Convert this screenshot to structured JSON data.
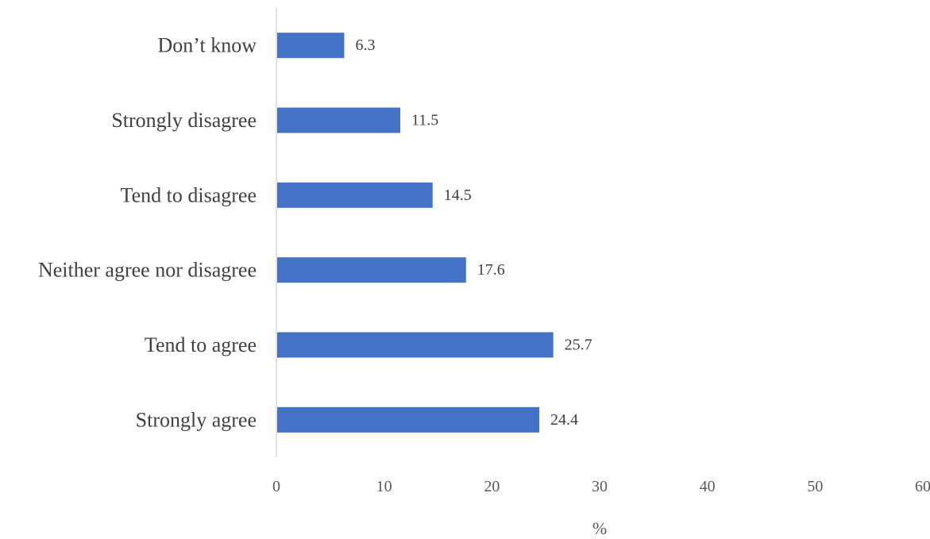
{
  "chart_data": {
    "type": "bar",
    "orientation": "horizontal",
    "categories": [
      "Strongly agree",
      "Tend to agree",
      "Neither agree nor disagree",
      "Tend to disagree",
      "Strongly disagree",
      "Don’t know"
    ],
    "values": [
      24.4,
      25.7,
      17.6,
      14.5,
      11.5,
      6.3
    ],
    "data_labels": [
      "24.4",
      "25.7",
      "17.6",
      "14.5",
      "11.5",
      "6.3"
    ],
    "xlabel": "%",
    "ylabel": "",
    "xlim": [
      0,
      60
    ],
    "x_ticks": [
      "0",
      "10",
      "20",
      "30",
      "40",
      "50",
      "60"
    ],
    "bar_color": "#4472C4",
    "grid": false,
    "legend": "none"
  }
}
